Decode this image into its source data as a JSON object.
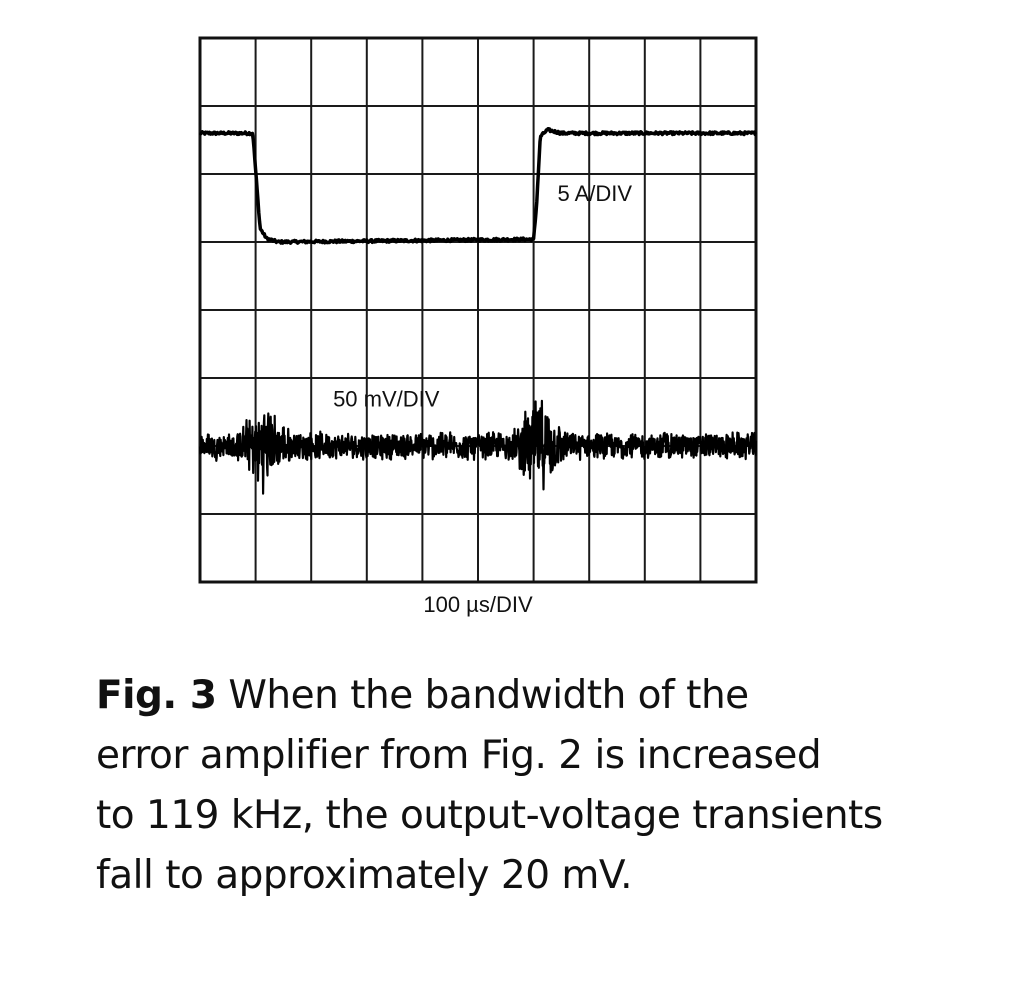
{
  "chart_data": {
    "type": "line",
    "title": "",
    "xlabel": "100 µs/DIV",
    "ylabel": "",
    "grid": true,
    "x_divisions": 10,
    "y_divisions": 8,
    "x_range_div": [
      0,
      10
    ],
    "y_range_div": [
      0,
      8
    ],
    "series": [
      {
        "name": "5 A/DIV",
        "noise_div": 0.02,
        "points": [
          [
            0,
            6.6
          ],
          [
            0.95,
            6.6
          ],
          [
            1.08,
            5.2
          ],
          [
            1.2,
            5.05
          ],
          [
            1.4,
            5.0
          ],
          [
            6.0,
            5.04
          ],
          [
            6.05,
            5.5
          ],
          [
            6.12,
            6.55
          ],
          [
            6.25,
            6.65
          ],
          [
            6.5,
            6.6
          ],
          [
            10,
            6.6
          ]
        ]
      },
      {
        "name": "50 mV/DIV",
        "noise_div": 0.22,
        "disturbances": [
          [
            1.15,
            0.55
          ],
          [
            6.1,
            0.6
          ]
        ],
        "points": [
          [
            0,
            2.0
          ],
          [
            10,
            2.0
          ]
        ]
      }
    ],
    "annotations": [
      {
        "text": "5 A/DIV",
        "x_div": 7.1,
        "y_div": 5.6
      },
      {
        "text": "50 mV/DIV",
        "x_div": 3.35,
        "y_div": 2.58
      }
    ]
  },
  "caption": {
    "figure_label": "Fig. 3",
    "lines": [
      "When the bandwidth of the",
      "error amplifier from Fig. 2 is increased",
      "to 119 kHz, the output-voltage transients",
      "fall to approximately 20 mV."
    ]
  }
}
